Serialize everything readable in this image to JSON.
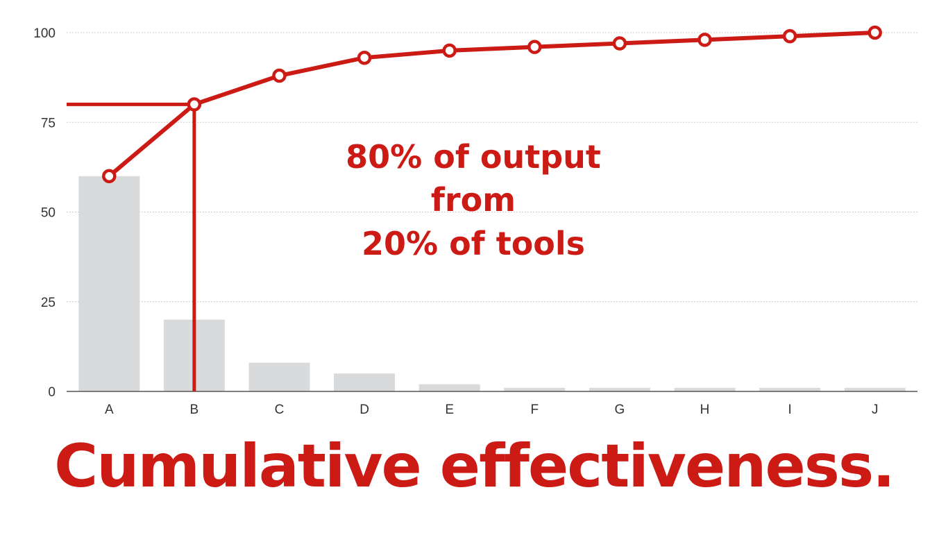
{
  "chart_data": {
    "type": "bar",
    "categories": [
      "A",
      "B",
      "C",
      "D",
      "E",
      "F",
      "G",
      "H",
      "I",
      "J"
    ],
    "bar_values": [
      60,
      20,
      8,
      5,
      2,
      1,
      1,
      1,
      1,
      1
    ],
    "line_values": [
      60,
      80,
      88,
      93,
      95,
      96,
      97,
      98,
      99,
      100
    ],
    "ylim": [
      0,
      100
    ],
    "yticks": [
      0,
      25,
      50,
      75,
      100
    ],
    "grid": true,
    "reference": {
      "x": "B",
      "y": 80
    },
    "annotation": [
      "80% of output",
      "from",
      "20% of tools"
    ],
    "colors": {
      "bar": "#d9dadb",
      "line": "#cc1a14",
      "grid": "#c8c8c8"
    }
  },
  "caption": "Cumulative effectiveness."
}
